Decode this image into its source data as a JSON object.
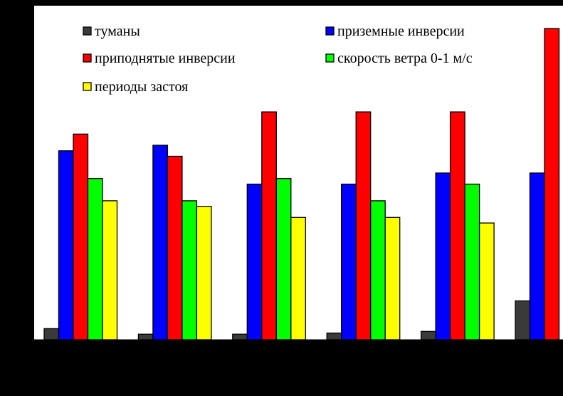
{
  "chart_data": {
    "type": "bar",
    "categories": [
      "",
      "",
      "",
      "",
      "",
      ""
    ],
    "series": [
      {
        "name": "туманы",
        "color": "#3a3a3a",
        "values": [
          2,
          1,
          1,
          1.2,
          1.5,
          7
        ]
      },
      {
        "name": "приземные инверсии",
        "color": "#0000ff",
        "values": [
          34,
          35,
          28,
          28,
          30,
          30
        ]
      },
      {
        "name": "приподнятые инверсии",
        "color": "#ff0000",
        "values": [
          37,
          33,
          41,
          41,
          41,
          56
        ]
      },
      {
        "name": "скорость ветра 0-1 м/с",
        "color": "#00ff00",
        "values": [
          29,
          25,
          29,
          25,
          28,
          0
        ]
      },
      {
        "name": "периоды застоя",
        "color": "#ffff00",
        "values": [
          25,
          24,
          22,
          22,
          21,
          0
        ]
      }
    ],
    "ylim": [
      0,
      60
    ],
    "grid": false,
    "legend": "top"
  },
  "colors": {
    "background": "#000000",
    "plot_area": "#ffffff"
  }
}
